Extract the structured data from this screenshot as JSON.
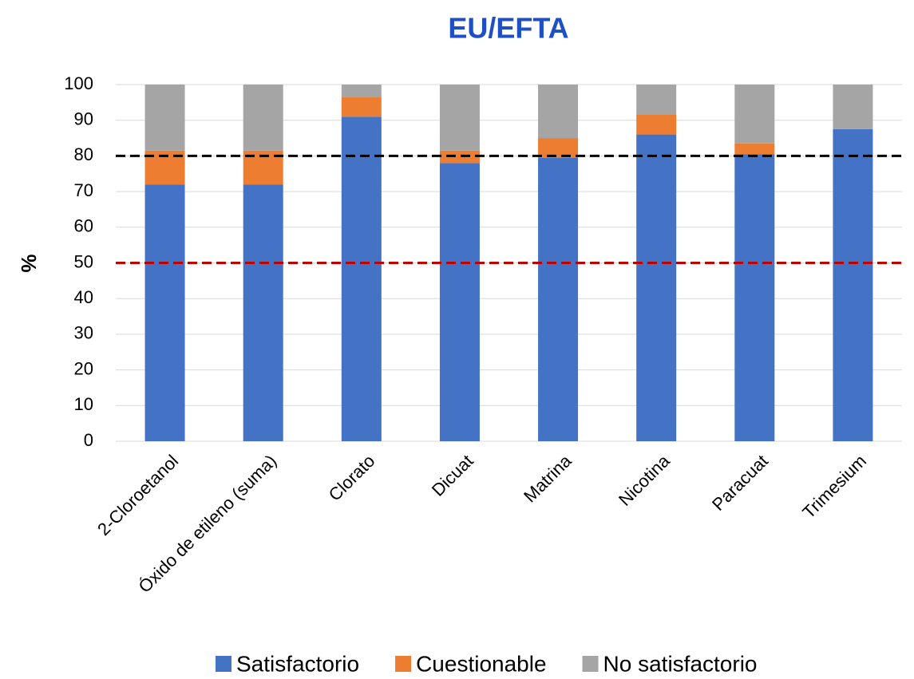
{
  "chart_data": {
    "type": "stacked_bar",
    "title": "EU/EFTA",
    "y_label": "%",
    "categories": [
      "2-Cloroetanol",
      "Óxido de etileno (suma)",
      "Clorato",
      "Dicuat",
      "Matrina",
      "Nicotina",
      "Paracuat",
      "Trimesium"
    ],
    "series": [
      {
        "name": "Satisfactorio",
        "color": "#4472c4",
        "values": [
          72,
          72,
          91,
          78,
          79.5,
          86,
          80.5,
          87.5
        ]
      },
      {
        "name": "Cuestionable",
        "color": "#ed7d31",
        "values": [
          9.5,
          9.5,
          5.5,
          3.5,
          5.5,
          5.5,
          3,
          0
        ]
      },
      {
        "name": "No satisfactorio",
        "color": "#a5a5a5",
        "values": [
          18.5,
          18.5,
          3.5,
          18.5,
          15,
          8.5,
          16.5,
          12.5
        ]
      }
    ],
    "reference_lines": [
      {
        "value": 80,
        "color": "#000000"
      },
      {
        "value": 50,
        "color": "#c00000"
      }
    ],
    "ylim": [
      0,
      100
    ],
    "yticks": [
      0,
      10,
      20,
      30,
      40,
      50,
      60,
      70,
      80,
      90,
      100
    ],
    "grid": true,
    "legend": "bottom"
  }
}
